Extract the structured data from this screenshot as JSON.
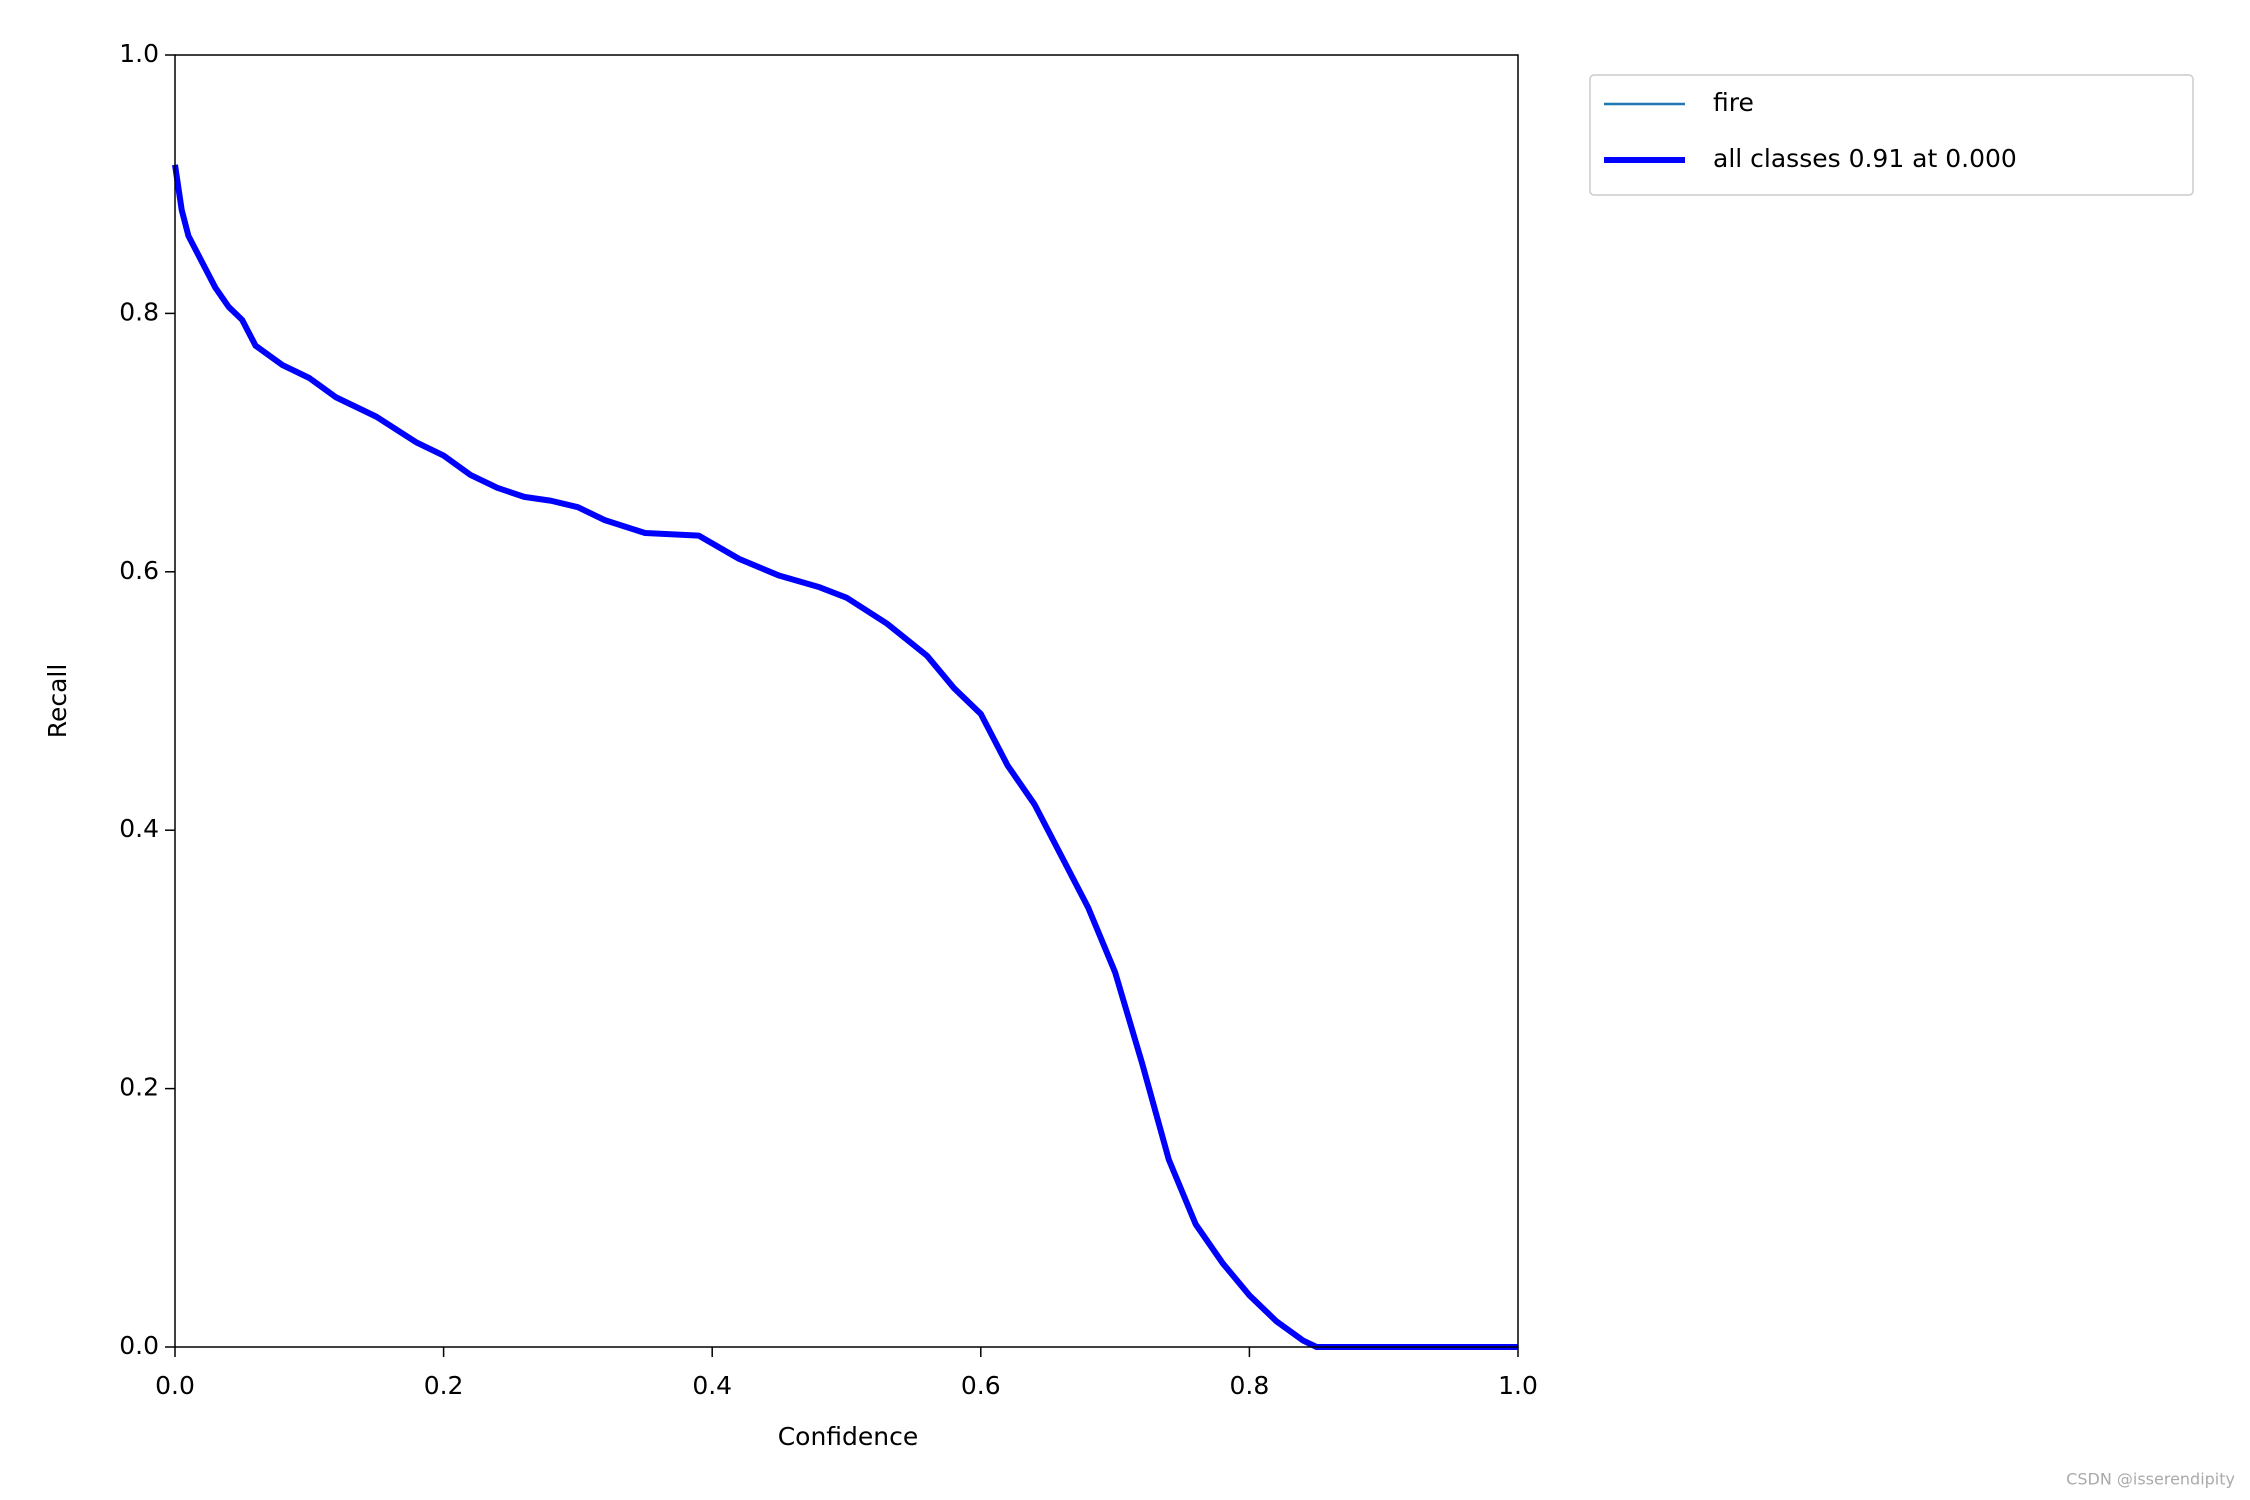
{
  "chart_data": {
    "type": "line",
    "xlabel": "Confidence",
    "ylabel": "Recall",
    "x": [
      0,
      0.005,
      0.01,
      0.02,
      0.03,
      0.04,
      0.05,
      0.06,
      0.08,
      0.1,
      0.12,
      0.15,
      0.18,
      0.2,
      0.22,
      0.24,
      0.26,
      0.28,
      0.3,
      0.32,
      0.35,
      0.39,
      0.42,
      0.45,
      0.48,
      0.5,
      0.53,
      0.56,
      0.58,
      0.6,
      0.62,
      0.64,
      0.66,
      0.68,
      0.7,
      0.72,
      0.74,
      0.76,
      0.78,
      0.8,
      0.82,
      0.84,
      0.85,
      1.0
    ],
    "series": [
      {
        "name": "fire",
        "color": "#1f77b4",
        "width": 2.5,
        "values": [
          0.915,
          0.88,
          0.86,
          0.84,
          0.82,
          0.805,
          0.795,
          0.775,
          0.76,
          0.75,
          0.735,
          0.72,
          0.7,
          0.69,
          0.675,
          0.665,
          0.658,
          0.655,
          0.65,
          0.64,
          0.63,
          0.628,
          0.61,
          0.597,
          0.588,
          0.58,
          0.56,
          0.535,
          0.51,
          0.49,
          0.45,
          0.42,
          0.38,
          0.34,
          0.29,
          0.22,
          0.145,
          0.095,
          0.065,
          0.04,
          0.02,
          0.005,
          0,
          0
        ]
      },
      {
        "name": "all classes 0.91 at 0.000",
        "color": "#0000ff",
        "width": 6,
        "values": [
          0.915,
          0.88,
          0.86,
          0.84,
          0.82,
          0.805,
          0.795,
          0.775,
          0.76,
          0.75,
          0.735,
          0.72,
          0.7,
          0.69,
          0.675,
          0.665,
          0.658,
          0.655,
          0.65,
          0.64,
          0.63,
          0.628,
          0.61,
          0.597,
          0.588,
          0.58,
          0.56,
          0.535,
          0.51,
          0.49,
          0.45,
          0.42,
          0.38,
          0.34,
          0.29,
          0.22,
          0.145,
          0.095,
          0.065,
          0.04,
          0.02,
          0.005,
          0,
          0
        ]
      }
    ],
    "xlim": [
      0,
      1
    ],
    "ylim": [
      0,
      1
    ],
    "xticks": [
      {
        "value": 0,
        "label": "0.0"
      },
      0.2,
      0.4,
      0.6,
      0.8,
      {
        "value": 1,
        "label": "1.0"
      }
    ],
    "yticks": [
      {
        "value": 0,
        "label": "0.0"
      },
      0.2,
      0.4,
      0.6,
      0.8,
      {
        "value": 1,
        "label": "1.0"
      }
    ],
    "legend": "outside-upper-right",
    "watermark": "CSDN @isserendipity"
  }
}
